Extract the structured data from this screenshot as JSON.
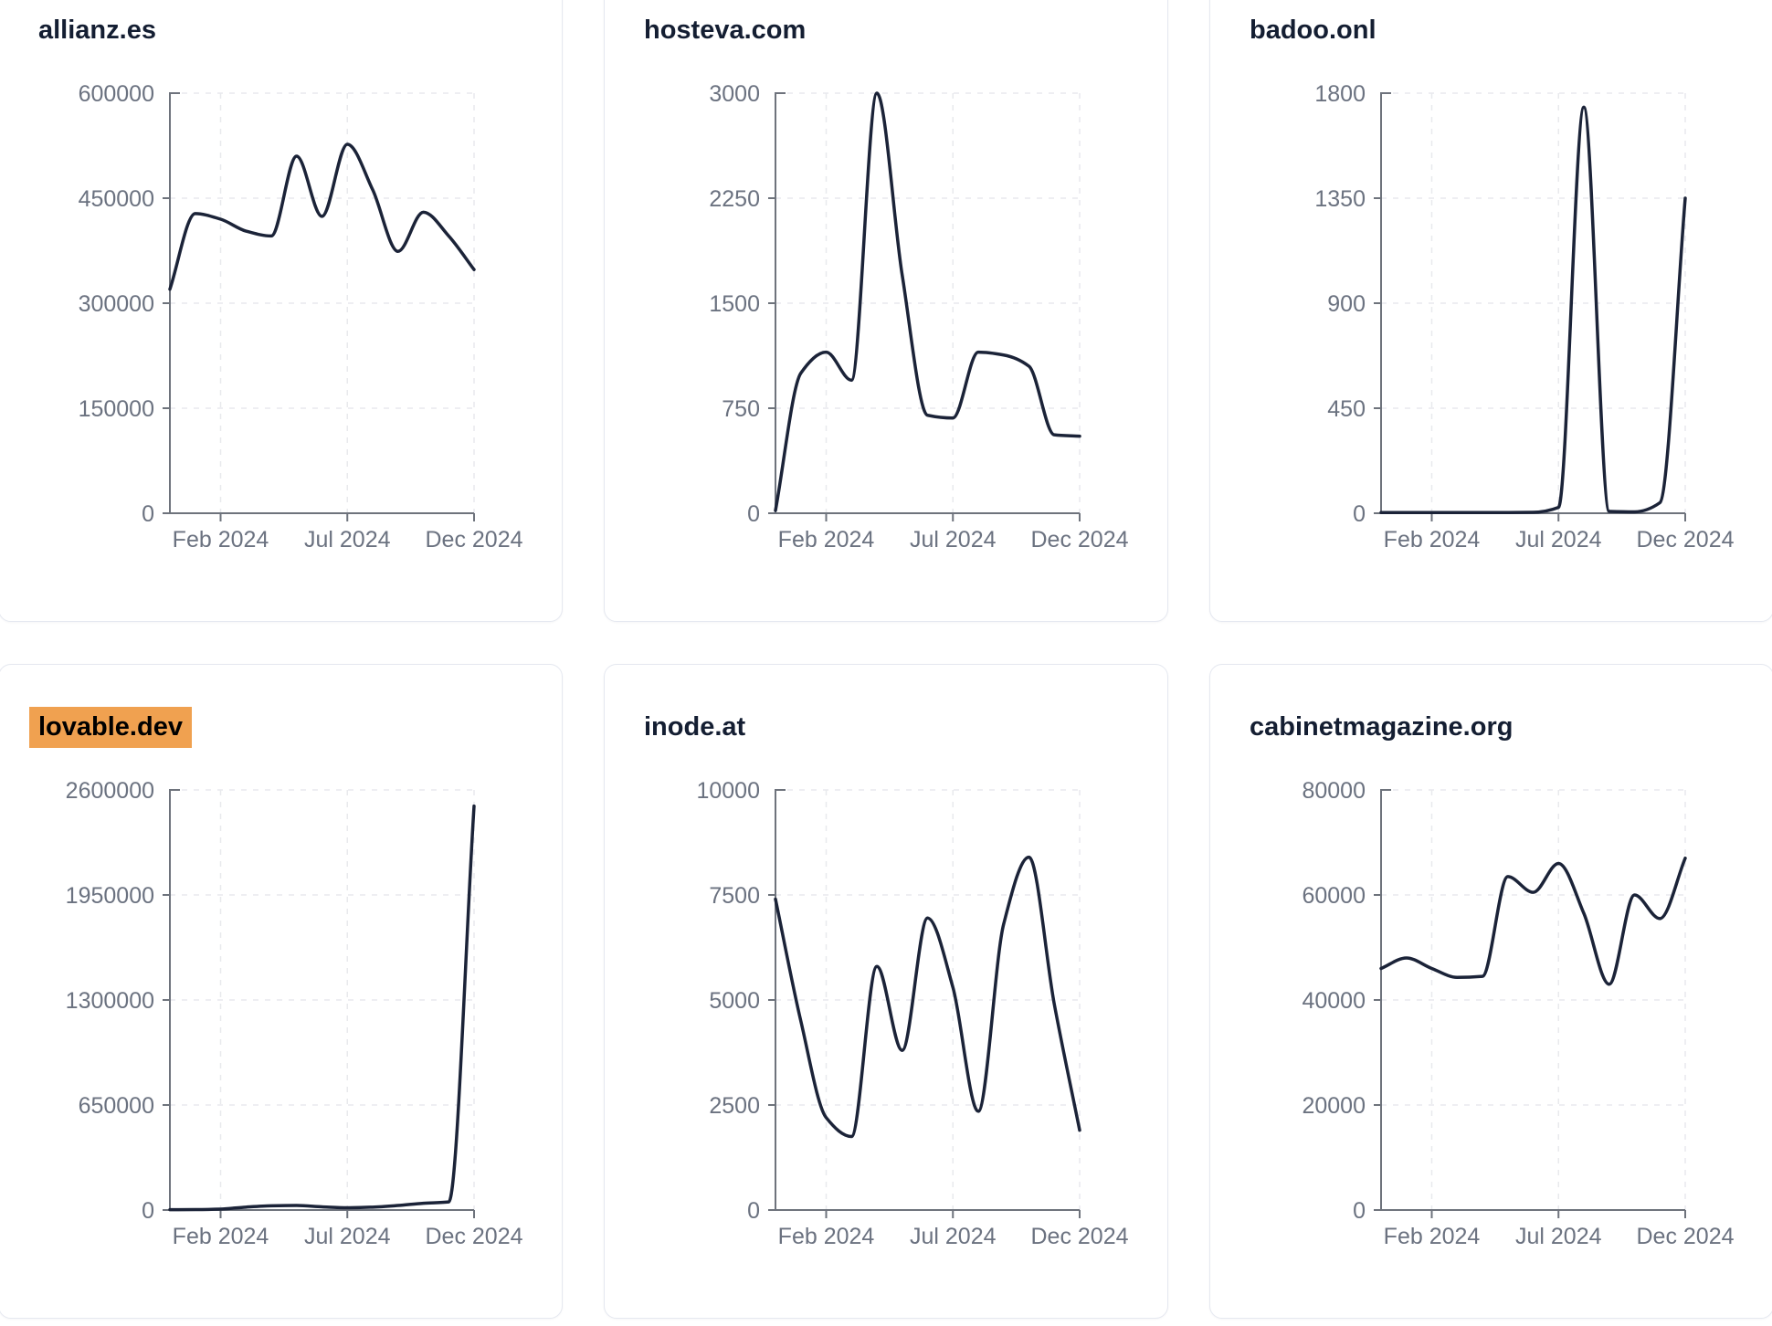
{
  "style": {
    "background": "#ffffff",
    "card_border": "#e5e8f0",
    "line_color": "#1b2338",
    "title_color": "#141e32",
    "tick_label_color": "#6b7280",
    "axis_color": "#6e737c",
    "gridline_color": "#e8e9ed",
    "highlight_color": "#f0a150",
    "highlight_text_color": "#000000"
  },
  "x_axis": {
    "tick_labels": [
      "Feb 2024",
      "Jul 2024",
      "Dec 2024"
    ],
    "tick_month_indices": [
      2,
      7,
      12
    ]
  },
  "chart_data": [
    {
      "type": "line",
      "title": "allianz.es",
      "highlighted": false,
      "x": [
        "2023-12",
        "2024-01",
        "2024-02",
        "2024-03",
        "2024-04",
        "2024-05",
        "2024-06",
        "2024-07",
        "2024-08",
        "2024-09",
        "2024-10",
        "2024-11",
        "2024-12"
      ],
      "values": [
        320000,
        428000,
        420000,
        403000,
        396000,
        510000,
        424000,
        527000,
        462000,
        374000,
        430000,
        396000,
        348000
      ],
      "y_ticks": [
        0,
        150000,
        300000,
        450000,
        600000
      ],
      "ylim": [
        0,
        600000
      ],
      "x_tick_labels": [
        "Feb 2024",
        "Jul 2024",
        "Dec 2024"
      ],
      "grid": true,
      "legend": false
    },
    {
      "type": "line",
      "title": "hosteva.com",
      "highlighted": false,
      "x": [
        "2023-12",
        "2024-01",
        "2024-02",
        "2024-03",
        "2024-04",
        "2024-05",
        "2024-06",
        "2024-07",
        "2024-08",
        "2024-09",
        "2024-10",
        "2024-11",
        "2024-12"
      ],
      "values": [
        20,
        1000,
        1150,
        950,
        3000,
        1700,
        700,
        680,
        1150,
        1130,
        1050,
        560,
        550
      ],
      "y_ticks": [
        0,
        750,
        1500,
        2250,
        3000
      ],
      "ylim": [
        0,
        3000
      ],
      "x_tick_labels": [
        "Feb 2024",
        "Jul 2024",
        "Dec 2024"
      ],
      "grid": true,
      "legend": false
    },
    {
      "type": "line",
      "title": "badoo.onl",
      "highlighted": false,
      "x": [
        "2023-12",
        "2024-01",
        "2024-02",
        "2024-03",
        "2024-04",
        "2024-05",
        "2024-06",
        "2024-07",
        "2024-08",
        "2024-09",
        "2024-10",
        "2024-11",
        "2024-12"
      ],
      "values": [
        3,
        3,
        3,
        3,
        3,
        3,
        4,
        25,
        1740,
        8,
        6,
        45,
        1350
      ],
      "y_ticks": [
        0,
        450,
        900,
        1350,
        1800
      ],
      "ylim": [
        0,
        1800
      ],
      "x_tick_labels": [
        "Feb 2024",
        "Jul 2024",
        "Dec 2024"
      ],
      "grid": true,
      "legend": false
    },
    {
      "type": "line",
      "title": "lovable.dev",
      "highlighted": true,
      "x": [
        "2023-12",
        "2024-01",
        "2024-02",
        "2024-03",
        "2024-04",
        "2024-05",
        "2024-06",
        "2024-07",
        "2024-08",
        "2024-09",
        "2024-10",
        "2024-11",
        "2024-12"
      ],
      "values": [
        2000,
        3000,
        6000,
        18000,
        26000,
        28000,
        20000,
        14000,
        18000,
        28000,
        42000,
        50000,
        2500000
      ],
      "y_ticks": [
        0,
        650000,
        1300000,
        1950000,
        2600000
      ],
      "ylim": [
        0,
        2600000
      ],
      "x_tick_labels": [
        "Feb 2024",
        "Jul 2024",
        "Dec 2024"
      ],
      "grid": true,
      "legend": false
    },
    {
      "type": "line",
      "title": "inode.at",
      "highlighted": false,
      "x": [
        "2023-12",
        "2024-01",
        "2024-02",
        "2024-03",
        "2024-04",
        "2024-05",
        "2024-06",
        "2024-07",
        "2024-08",
        "2024-09",
        "2024-10",
        "2024-11",
        "2024-12"
      ],
      "values": [
        7400,
        4500,
        2200,
        1750,
        5800,
        3800,
        6950,
        5300,
        2350,
        6800,
        8400,
        4900,
        1900
      ],
      "y_ticks": [
        0,
        2500,
        5000,
        7500,
        10000
      ],
      "ylim": [
        0,
        10000
      ],
      "x_tick_labels": [
        "Feb 2024",
        "Jul 2024",
        "Dec 2024"
      ],
      "grid": true,
      "legend": false
    },
    {
      "type": "line",
      "title": "cabinetmagazine.org",
      "highlighted": false,
      "x": [
        "2023-12",
        "2024-01",
        "2024-02",
        "2024-03",
        "2024-04",
        "2024-05",
        "2024-06",
        "2024-07",
        "2024-08",
        "2024-09",
        "2024-10",
        "2024-11",
        "2024-12"
      ],
      "values": [
        46000,
        48000,
        46000,
        44300,
        44500,
        63500,
        60500,
        66000,
        56500,
        43000,
        60000,
        55500,
        67000
      ],
      "y_ticks": [
        0,
        20000,
        40000,
        60000,
        80000
      ],
      "ylim": [
        0,
        80000
      ],
      "x_tick_labels": [
        "Feb 2024",
        "Jul 2024",
        "Dec 2024"
      ],
      "grid": true,
      "legend": false
    }
  ]
}
